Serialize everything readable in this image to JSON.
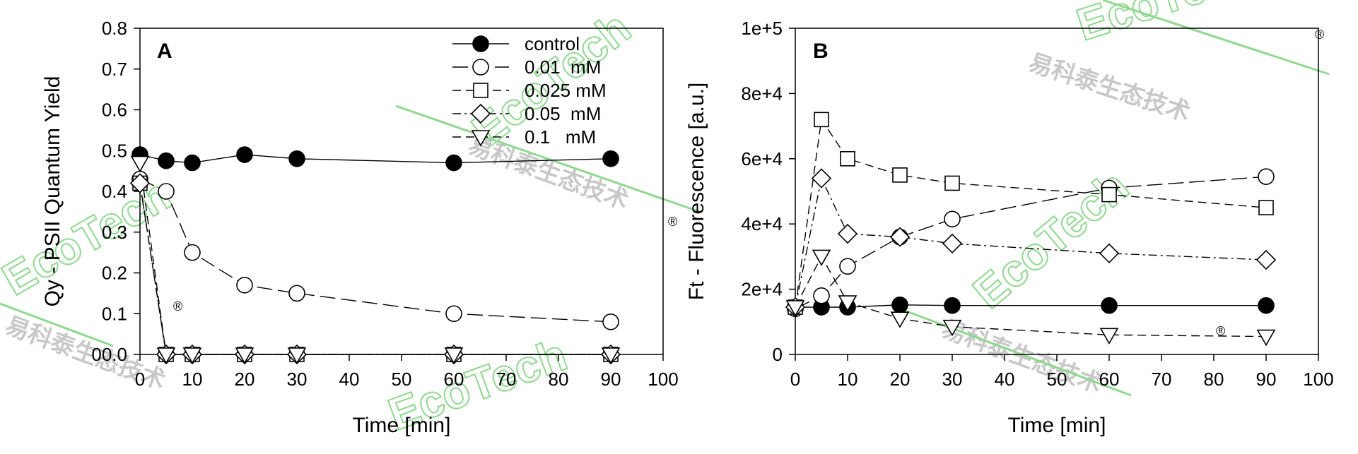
{
  "chart_data": [
    {
      "type": "line",
      "panel_label": "A",
      "xlabel": "Time [min]",
      "ylabel": "Qy - PSII Quantum Yield",
      "xlim": [
        0,
        100
      ],
      "ylim": [
        0,
        0.8
      ],
      "x_ticks": [
        "0",
        "10",
        "20",
        "30",
        "40",
        "50",
        "60",
        "70",
        "80",
        "90",
        "100"
      ],
      "y_ticks": [
        "00.0",
        "0.1",
        "0.2",
        "0.3",
        "0.4",
        "0.5",
        "0.6",
        "0.7",
        "0.8"
      ],
      "x": [
        0,
        5,
        10,
        20,
        30,
        60,
        90
      ],
      "legend_position": "top-right",
      "series": [
        {
          "name": "control",
          "values": [
            0.49,
            0.475,
            0.47,
            0.49,
            0.48,
            0.47,
            0.48
          ],
          "marker": "filled-circle",
          "dash": "solid"
        },
        {
          "name": "0.01  mM",
          "values": [
            0.43,
            0.4,
            0.25,
            0.17,
            0.15,
            0.1,
            0.08
          ],
          "marker": "open-circle",
          "dash": "long-dash"
        },
        {
          "name": "0.025 mM",
          "values": [
            0.42,
            0.0,
            0.0,
            0.0,
            0.0,
            0.0,
            0.0
          ],
          "marker": "open-square",
          "dash": "dash"
        },
        {
          "name": "0.05  mM",
          "values": [
            0.42,
            0.0,
            0.0,
            0.0,
            0.0,
            0.0,
            0.0
          ],
          "marker": "open-diamond",
          "dash": "dash-dot"
        },
        {
          "name": "0.1   mM",
          "values": [
            0.47,
            0.0,
            0.0,
            0.0,
            0.0,
            0.0,
            0.0
          ],
          "marker": "open-triangle-down",
          "dash": "dash"
        }
      ]
    },
    {
      "type": "line",
      "panel_label": "B",
      "xlabel": "Time [min]",
      "ylabel": "Ft - Fluorescence [a.u.]",
      "xlim": [
        0,
        100
      ],
      "ylim": [
        0,
        100000
      ],
      "x_ticks": [
        "0",
        "10",
        "20",
        "30",
        "40",
        "50",
        "60",
        "70",
        "80",
        "90",
        "100"
      ],
      "y_ticks": [
        "0",
        "2e+4",
        "4e+4",
        "6e+4",
        "8e+4",
        "1e+5"
      ],
      "x": [
        0,
        5,
        10,
        20,
        30,
        60,
        90
      ],
      "series": [
        {
          "name": "control",
          "values": [
            14500,
            14500,
            14500,
            15200,
            15000,
            15000,
            15000
          ],
          "marker": "filled-circle",
          "dash": "solid"
        },
        {
          "name": "0.01  mM",
          "values": [
            14000,
            18000,
            27000,
            36000,
            41500,
            51000,
            54500
          ],
          "marker": "open-circle",
          "dash": "long-dash"
        },
        {
          "name": "0.025 mM",
          "values": [
            14500,
            72000,
            60000,
            55000,
            52500,
            49000,
            45000
          ],
          "marker": "open-square",
          "dash": "dash"
        },
        {
          "name": "0.05  mM",
          "values": [
            14500,
            54000,
            37000,
            36000,
            34000,
            31000,
            29000
          ],
          "marker": "open-diamond",
          "dash": "dash-dot"
        },
        {
          "name": "0.1   mM",
          "values": [
            14500,
            30000,
            16000,
            11000,
            8500,
            6000,
            5500
          ],
          "marker": "open-triangle-down",
          "dash": "dash"
        }
      ]
    }
  ],
  "watermark": {
    "brand": "EcoTech",
    "cn": "易科泰生态技术",
    "registered": "®"
  },
  "colors": {
    "axis": "#000000",
    "series": "#000000",
    "marker_fill_open": "#ffffff",
    "watermark_brand": "#8fd88f",
    "watermark_cn": "#c8c8c8"
  }
}
